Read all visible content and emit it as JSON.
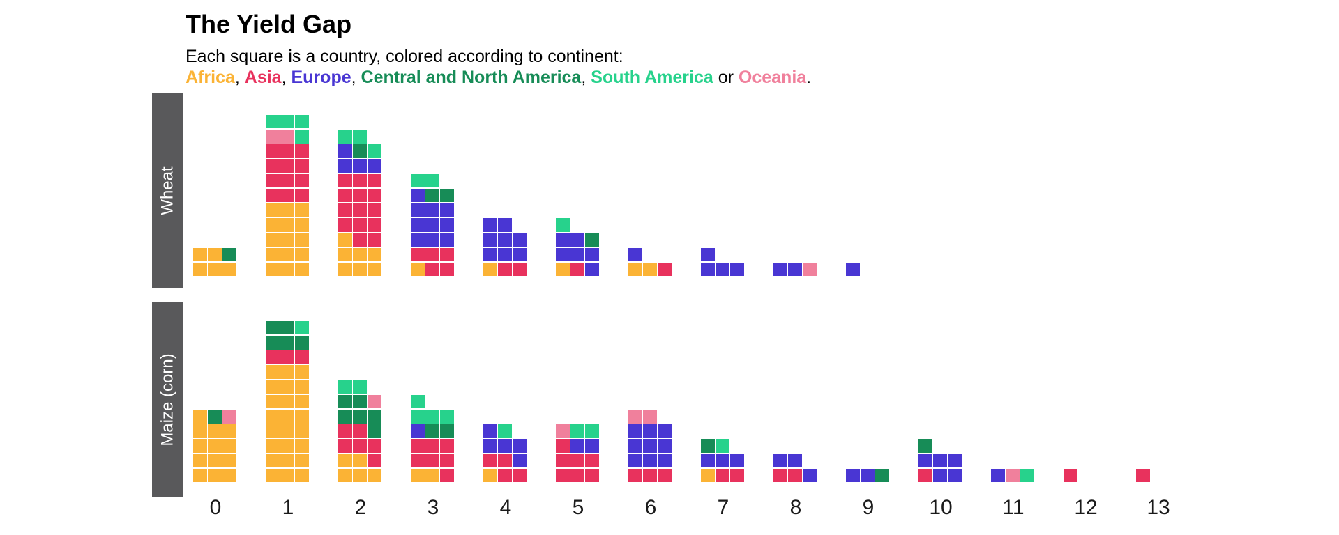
{
  "header": {
    "title": "The Yield Gap",
    "subtitle": "Each square is a country, colored according to continent:"
  },
  "palette": {
    "africa": "#FBB335",
    "asia": "#E8325D",
    "europe": "#4936D3",
    "north_america": "#178C57",
    "south_america": "#27D28C",
    "oceania": "#F0809C",
    "strip_background": "#59595b",
    "axis_text": "#1a1a1a"
  },
  "legend": {
    "segments": [
      {
        "text": "Africa",
        "continent": "africa"
      },
      {
        "text": ", "
      },
      {
        "text": "Asia",
        "continent": "asia"
      },
      {
        "text": ", "
      },
      {
        "text": "Europe",
        "continent": "europe"
      },
      {
        "text": ", "
      },
      {
        "text": "Central and North America",
        "continent": "north_america"
      },
      {
        "text": ", "
      },
      {
        "text": "South America",
        "continent": "south_america"
      },
      {
        "text": " or "
      },
      {
        "text": "Oceania",
        "continent": "oceania"
      },
      {
        "text": "."
      }
    ]
  },
  "chart_data": {
    "type": "waffle-histogram",
    "note": "Each small square is one country, stacked in 3-wide waffle columns per x value; rows listed bottom-to-top, letters are columns left-to-right. Codes: f=Africa, a=Asia, e=Europe, n=Central and North America, o=Oceania, s=South America.",
    "square_codes": {
      "f": "africa",
      "a": "asia",
      "e": "europe",
      "n": "north_america",
      "o": "oceania",
      "s": "south_america"
    },
    "x_ticks": [
      "0",
      "1",
      "2",
      "3",
      "4",
      "5",
      "6",
      "7",
      "8",
      "9",
      "10",
      "11",
      "12",
      "13"
    ],
    "facets": [
      {
        "label": "Wheat",
        "bars": [
          {
            "x": 0,
            "rows_bottom_to_top": [
              "fff",
              "ffn"
            ]
          },
          {
            "x": 1,
            "rows_bottom_to_top": [
              "fff",
              "fff",
              "fff",
              "fff",
              "fff",
              "aaa",
              "aaa",
              "aaa",
              "aaa",
              "oos",
              "sss"
            ]
          },
          {
            "x": 2,
            "rows_bottom_to_top": [
              "fff",
              "fff",
              "faa",
              "aaa",
              "aaa",
              "aaa",
              "aaa",
              "eee",
              "ens",
              "ss"
            ]
          },
          {
            "x": 3,
            "rows_bottom_to_top": [
              "faa",
              "aaa",
              "eee",
              "eee",
              "eee",
              "enn",
              "ss"
            ]
          },
          {
            "x": 4,
            "rows_bottom_to_top": [
              "faa",
              "eee",
              "eee",
              "ee"
            ]
          },
          {
            "x": 5,
            "rows_bottom_to_top": [
              "fae",
              "eee",
              "een",
              "s"
            ]
          },
          {
            "x": 6,
            "rows_bottom_to_top": [
              "ffa",
              "e"
            ]
          },
          {
            "x": 7,
            "rows_bottom_to_top": [
              "eee",
              "e"
            ]
          },
          {
            "x": 8,
            "rows_bottom_to_top": [
              "eeo"
            ]
          },
          {
            "x": 9,
            "rows_bottom_to_top": [
              "e"
            ]
          }
        ]
      },
      {
        "label": "Maize (corn)",
        "bars": [
          {
            "x": 0,
            "rows_bottom_to_top": [
              "fff",
              "fff",
              "fff",
              "fff",
              "fno"
            ]
          },
          {
            "x": 1,
            "rows_bottom_to_top": [
              "fff",
              "fff",
              "fff",
              "fff",
              "fff",
              "fff",
              "fff",
              "fff",
              "aaa",
              "nnn",
              "nns"
            ]
          },
          {
            "x": 2,
            "rows_bottom_to_top": [
              "fff",
              "ffa",
              "aaa",
              "aan",
              "nnn",
              "nno",
              "ss"
            ]
          },
          {
            "x": 3,
            "rows_bottom_to_top": [
              "ffa",
              "aaa",
              "aaa",
              "enn",
              "sss",
              "s"
            ]
          },
          {
            "x": 4,
            "rows_bottom_to_top": [
              "faa",
              "aae",
              "eee",
              "es"
            ]
          },
          {
            "x": 5,
            "rows_bottom_to_top": [
              "aaa",
              "aaa",
              "aee",
              "oss"
            ]
          },
          {
            "x": 6,
            "rows_bottom_to_top": [
              "aaa",
              "eee",
              "eee",
              "eee",
              "oo"
            ]
          },
          {
            "x": 7,
            "rows_bottom_to_top": [
              "faa",
              "eee",
              "ns"
            ]
          },
          {
            "x": 8,
            "rows_bottom_to_top": [
              "aae",
              "ee"
            ]
          },
          {
            "x": 9,
            "rows_bottom_to_top": [
              "een"
            ]
          },
          {
            "x": 10,
            "rows_bottom_to_top": [
              "aee",
              "eee",
              "n"
            ]
          },
          {
            "x": 11,
            "rows_bottom_to_top": [
              "eos"
            ]
          },
          {
            "x": 12,
            "rows_bottom_to_top": [
              "a"
            ]
          },
          {
            "x": 13,
            "rows_bottom_to_top": [
              "a"
            ]
          }
        ]
      }
    ]
  }
}
